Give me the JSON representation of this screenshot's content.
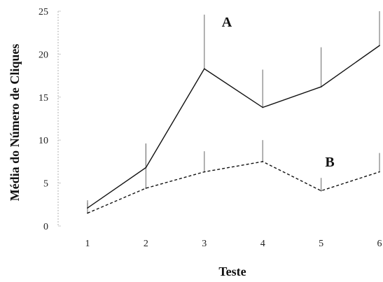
{
  "chart_data": {
    "type": "line",
    "title": "",
    "xlabel": "Teste",
    "ylabel": "Média do Número de Cliques",
    "x": [
      1,
      2,
      3,
      4,
      5,
      6
    ],
    "x_tick_labels": [
      "1",
      "2",
      "3",
      "4",
      "5",
      "6"
    ],
    "ylim": [
      0,
      25
    ],
    "y_ticks": [
      0,
      5,
      10,
      15,
      20,
      25
    ],
    "y_tick_labels": [
      "0",
      "5",
      "10",
      "15",
      "20",
      "25"
    ],
    "grid": false,
    "legend": "none",
    "series": [
      {
        "name": "A",
        "values": [
          2.1,
          6.8,
          18.3,
          13.8,
          16.2,
          21.0
        ],
        "error_upper": [
          3.0,
          9.6,
          24.6,
          18.2,
          20.8,
          25.0
        ],
        "line_style": "solid",
        "color": "#111111"
      },
      {
        "name": "B",
        "values": [
          1.5,
          4.4,
          6.3,
          7.5,
          4.1,
          6.3
        ],
        "error_upper": [
          2.7,
          9.6,
          8.7,
          10.0,
          5.6,
          8.5
        ],
        "line_style": "dashed",
        "color": "#111111"
      }
    ],
    "error_bar_color": "#888888",
    "axis_color": "#cccccc"
  }
}
